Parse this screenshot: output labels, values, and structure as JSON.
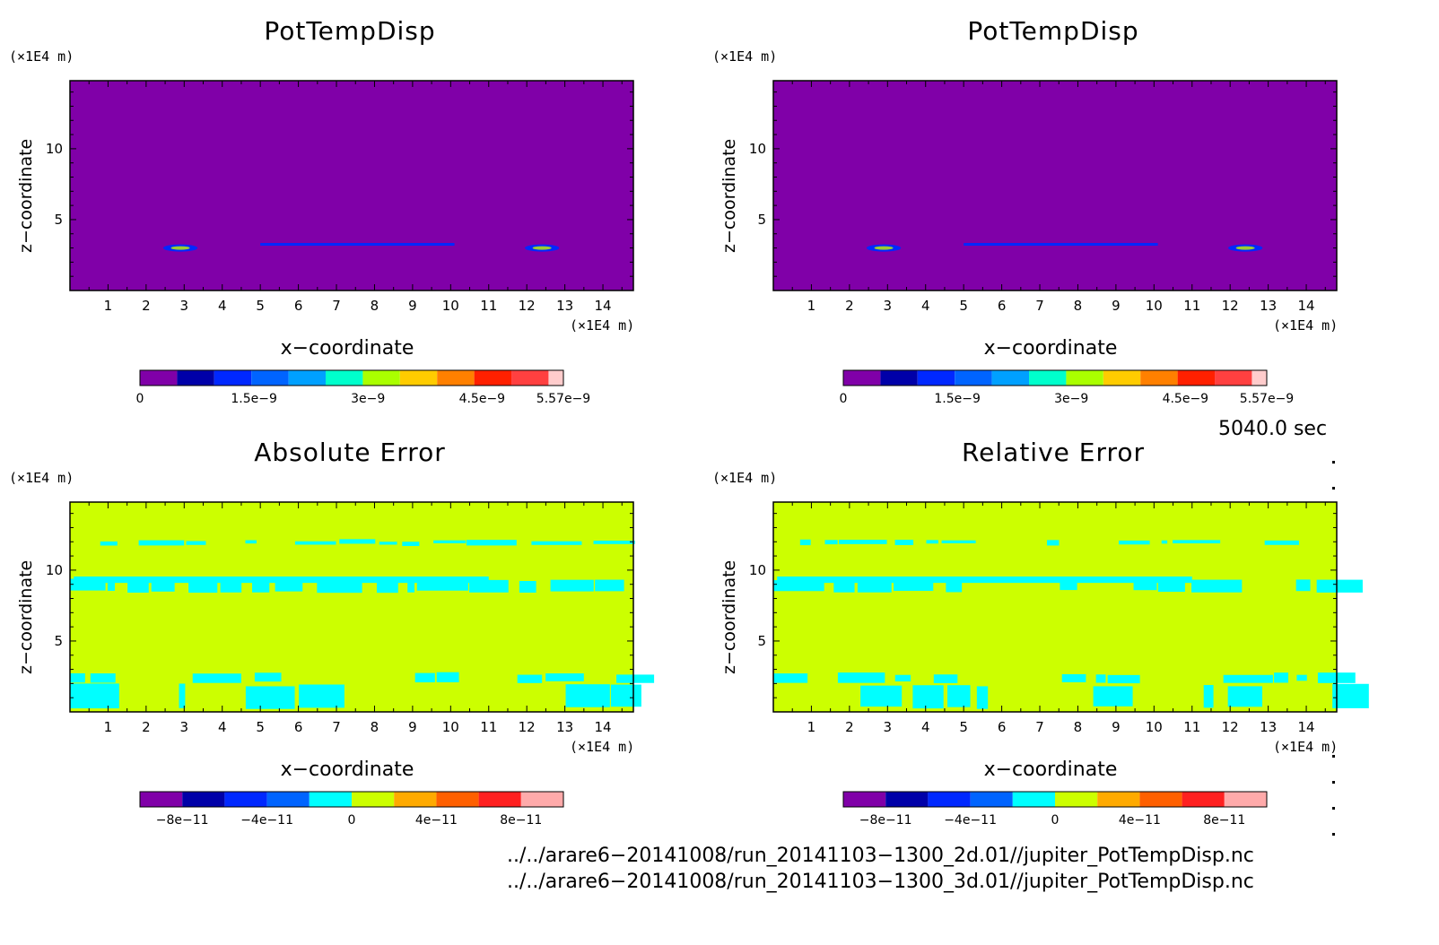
{
  "panels": [
    {
      "title": "PotTempDisp",
      "y_unit": "(×1E4 m)",
      "x_unit": "(×1E4 m)",
      "xlabel": "x−coordinate",
      "ylabel": "z−coordinate",
      "colorbar_ticks": [
        "0",
        "1.5e−9",
        "3e−9",
        "4.5e−9",
        "5.57e−9"
      ]
    },
    {
      "title": "PotTempDisp",
      "y_unit": "(×1E4 m)",
      "x_unit": "(×1E4 m)",
      "xlabel": "x−coordinate",
      "ylabel": "z−coordinate",
      "colorbar_ticks": [
        "0",
        "1.5e−9",
        "3e−9",
        "4.5e−9",
        "5.57e−9"
      ]
    },
    {
      "title": "Absolute Error",
      "y_unit": "(×1E4 m)",
      "x_unit": "(×1E4 m)",
      "xlabel": "x−coordinate",
      "ylabel": "z−coordinate",
      "colorbar_ticks": [
        "−8e−11",
        "−4e−11",
        "0",
        "4e−11",
        "8e−11"
      ]
    },
    {
      "title": "Relative Error",
      "y_unit": "(×1E4 m)",
      "x_unit": "(×1E4 m)",
      "xlabel": "x−coordinate",
      "ylabel": "z−coordinate",
      "colorbar_ticks": [
        "−8e−11",
        "−4e−11",
        "0",
        "4e−11",
        "8e−11"
      ]
    }
  ],
  "timestamp": "5040.0 sec",
  "footer": {
    "line1": "../../arare6−20141008/run_20141103−1300_2d.01//jupiter_PotTempDisp.nc",
    "line2": "../../arare6−20141008/run_20141103−1300_3d.01//jupiter_PotTempDisp.nc"
  },
  "colors": {
    "disp_bg": "#8000a8",
    "error_bg": "#ccff00",
    "error_band": "#00ffff",
    "disp_colorbar": [
      "#8000a8",
      "#0000a8",
      "#0028ff",
      "#0064ff",
      "#00a0ff",
      "#00ffcc",
      "#aaff00",
      "#ffcc00",
      "#ff8000",
      "#ff2000",
      "#ff4040",
      "#ffcccc"
    ],
    "err_colorbar": [
      "#8000a8",
      "#0000a8",
      "#0028ff",
      "#0064ff",
      "#00ffff",
      "#ccff00",
      "#ffaa00",
      "#ff6000",
      "#ff2020",
      "#ffaaaa"
    ]
  },
  "chart_data": [
    {
      "type": "heatmap",
      "title": "PotTempDisp",
      "xlabel": "x−coordinate",
      "ylabel": "z−coordinate",
      "x_ticks": [
        1,
        2,
        3,
        4,
        5,
        6,
        7,
        8,
        9,
        10,
        11,
        12,
        13,
        14
      ],
      "y_ticks": [
        5,
        10
      ],
      "xlim": [
        0,
        14.8
      ],
      "ylim": [
        0,
        14.8
      ],
      "colorbar": {
        "min": 0,
        "max": 5.57e-09
      }
    },
    {
      "type": "heatmap",
      "title": "PotTempDisp",
      "xlabel": "x−coordinate",
      "ylabel": "z−coordinate",
      "x_ticks": [
        1,
        2,
        3,
        4,
        5,
        6,
        7,
        8,
        9,
        10,
        11,
        12,
        13,
        14
      ],
      "y_ticks": [
        5,
        10
      ],
      "xlim": [
        0,
        14.8
      ],
      "ylim": [
        0,
        14.8
      ],
      "colorbar": {
        "min": 0,
        "max": 5.57e-09
      }
    },
    {
      "type": "heatmap",
      "title": "Absolute Error",
      "xlabel": "x−coordinate",
      "ylabel": "z−coordinate",
      "x_ticks": [
        1,
        2,
        3,
        4,
        5,
        6,
        7,
        8,
        9,
        10,
        11,
        12,
        13,
        14
      ],
      "y_ticks": [
        5,
        10
      ],
      "xlim": [
        0,
        14.8
      ],
      "ylim": [
        0,
        14.8
      ],
      "colorbar": {
        "min": -1e-10,
        "max": 1e-10
      }
    },
    {
      "type": "heatmap",
      "title": "Relative Error",
      "xlabel": "x−coordinate",
      "ylabel": "z−coordinate",
      "x_ticks": [
        1,
        2,
        3,
        4,
        5,
        6,
        7,
        8,
        9,
        10,
        11,
        12,
        13,
        14
      ],
      "y_ticks": [
        5,
        10
      ],
      "xlim": [
        0,
        14.8
      ],
      "ylim": [
        0,
        14.8
      ],
      "colorbar": {
        "min": -1e-10,
        "max": 1e-10
      }
    }
  ]
}
